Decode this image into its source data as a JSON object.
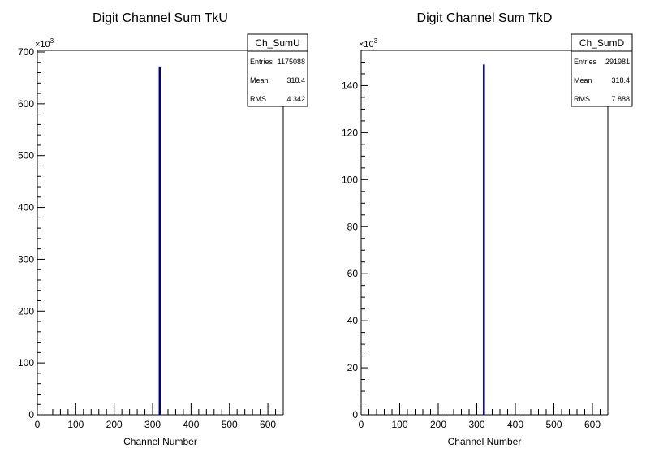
{
  "chart_data": [
    {
      "type": "bar",
      "title": "Digit Channel Sum TkU",
      "xlabel": "Channel Number",
      "ylabel": "",
      "y_multiplier": "×10",
      "y_exponent": "3",
      "xlim": [
        0,
        640
      ],
      "ylim": [
        0,
        700
      ],
      "x_ticks": [
        0,
        100,
        200,
        300,
        400,
        500,
        600
      ],
      "y_ticks": [
        0,
        100,
        200,
        300,
        400,
        500,
        600,
        700
      ],
      "line_color": "#000080",
      "bins": [
        {
          "x": 318,
          "value": 672
        }
      ],
      "stats": {
        "name": "Ch_SumU",
        "rows": [
          {
            "label": "Entries",
            "value": "1175088"
          },
          {
            "label": "Mean",
            "value": "318.4"
          },
          {
            "label": "RMS",
            "value": "4.342"
          }
        ]
      }
    },
    {
      "type": "bar",
      "title": "Digit Channel Sum TkD",
      "xlabel": "Channel Number",
      "ylabel": "",
      "y_multiplier": "×10",
      "y_exponent": "3",
      "xlim": [
        0,
        640
      ],
      "ylim": [
        0,
        155
      ],
      "x_ticks": [
        0,
        100,
        200,
        300,
        400,
        500,
        600
      ],
      "y_ticks": [
        0,
        20,
        40,
        60,
        80,
        100,
        120,
        140
      ],
      "line_color": "#000080",
      "bins": [
        {
          "x": 318,
          "value": 149
        }
      ],
      "stats": {
        "name": "Ch_SumD",
        "rows": [
          {
            "label": "Entries",
            "value": "291981"
          },
          {
            "label": "Mean",
            "value": "318.4"
          },
          {
            "label": "RMS",
            "value": "7.888"
          }
        ]
      }
    }
  ]
}
